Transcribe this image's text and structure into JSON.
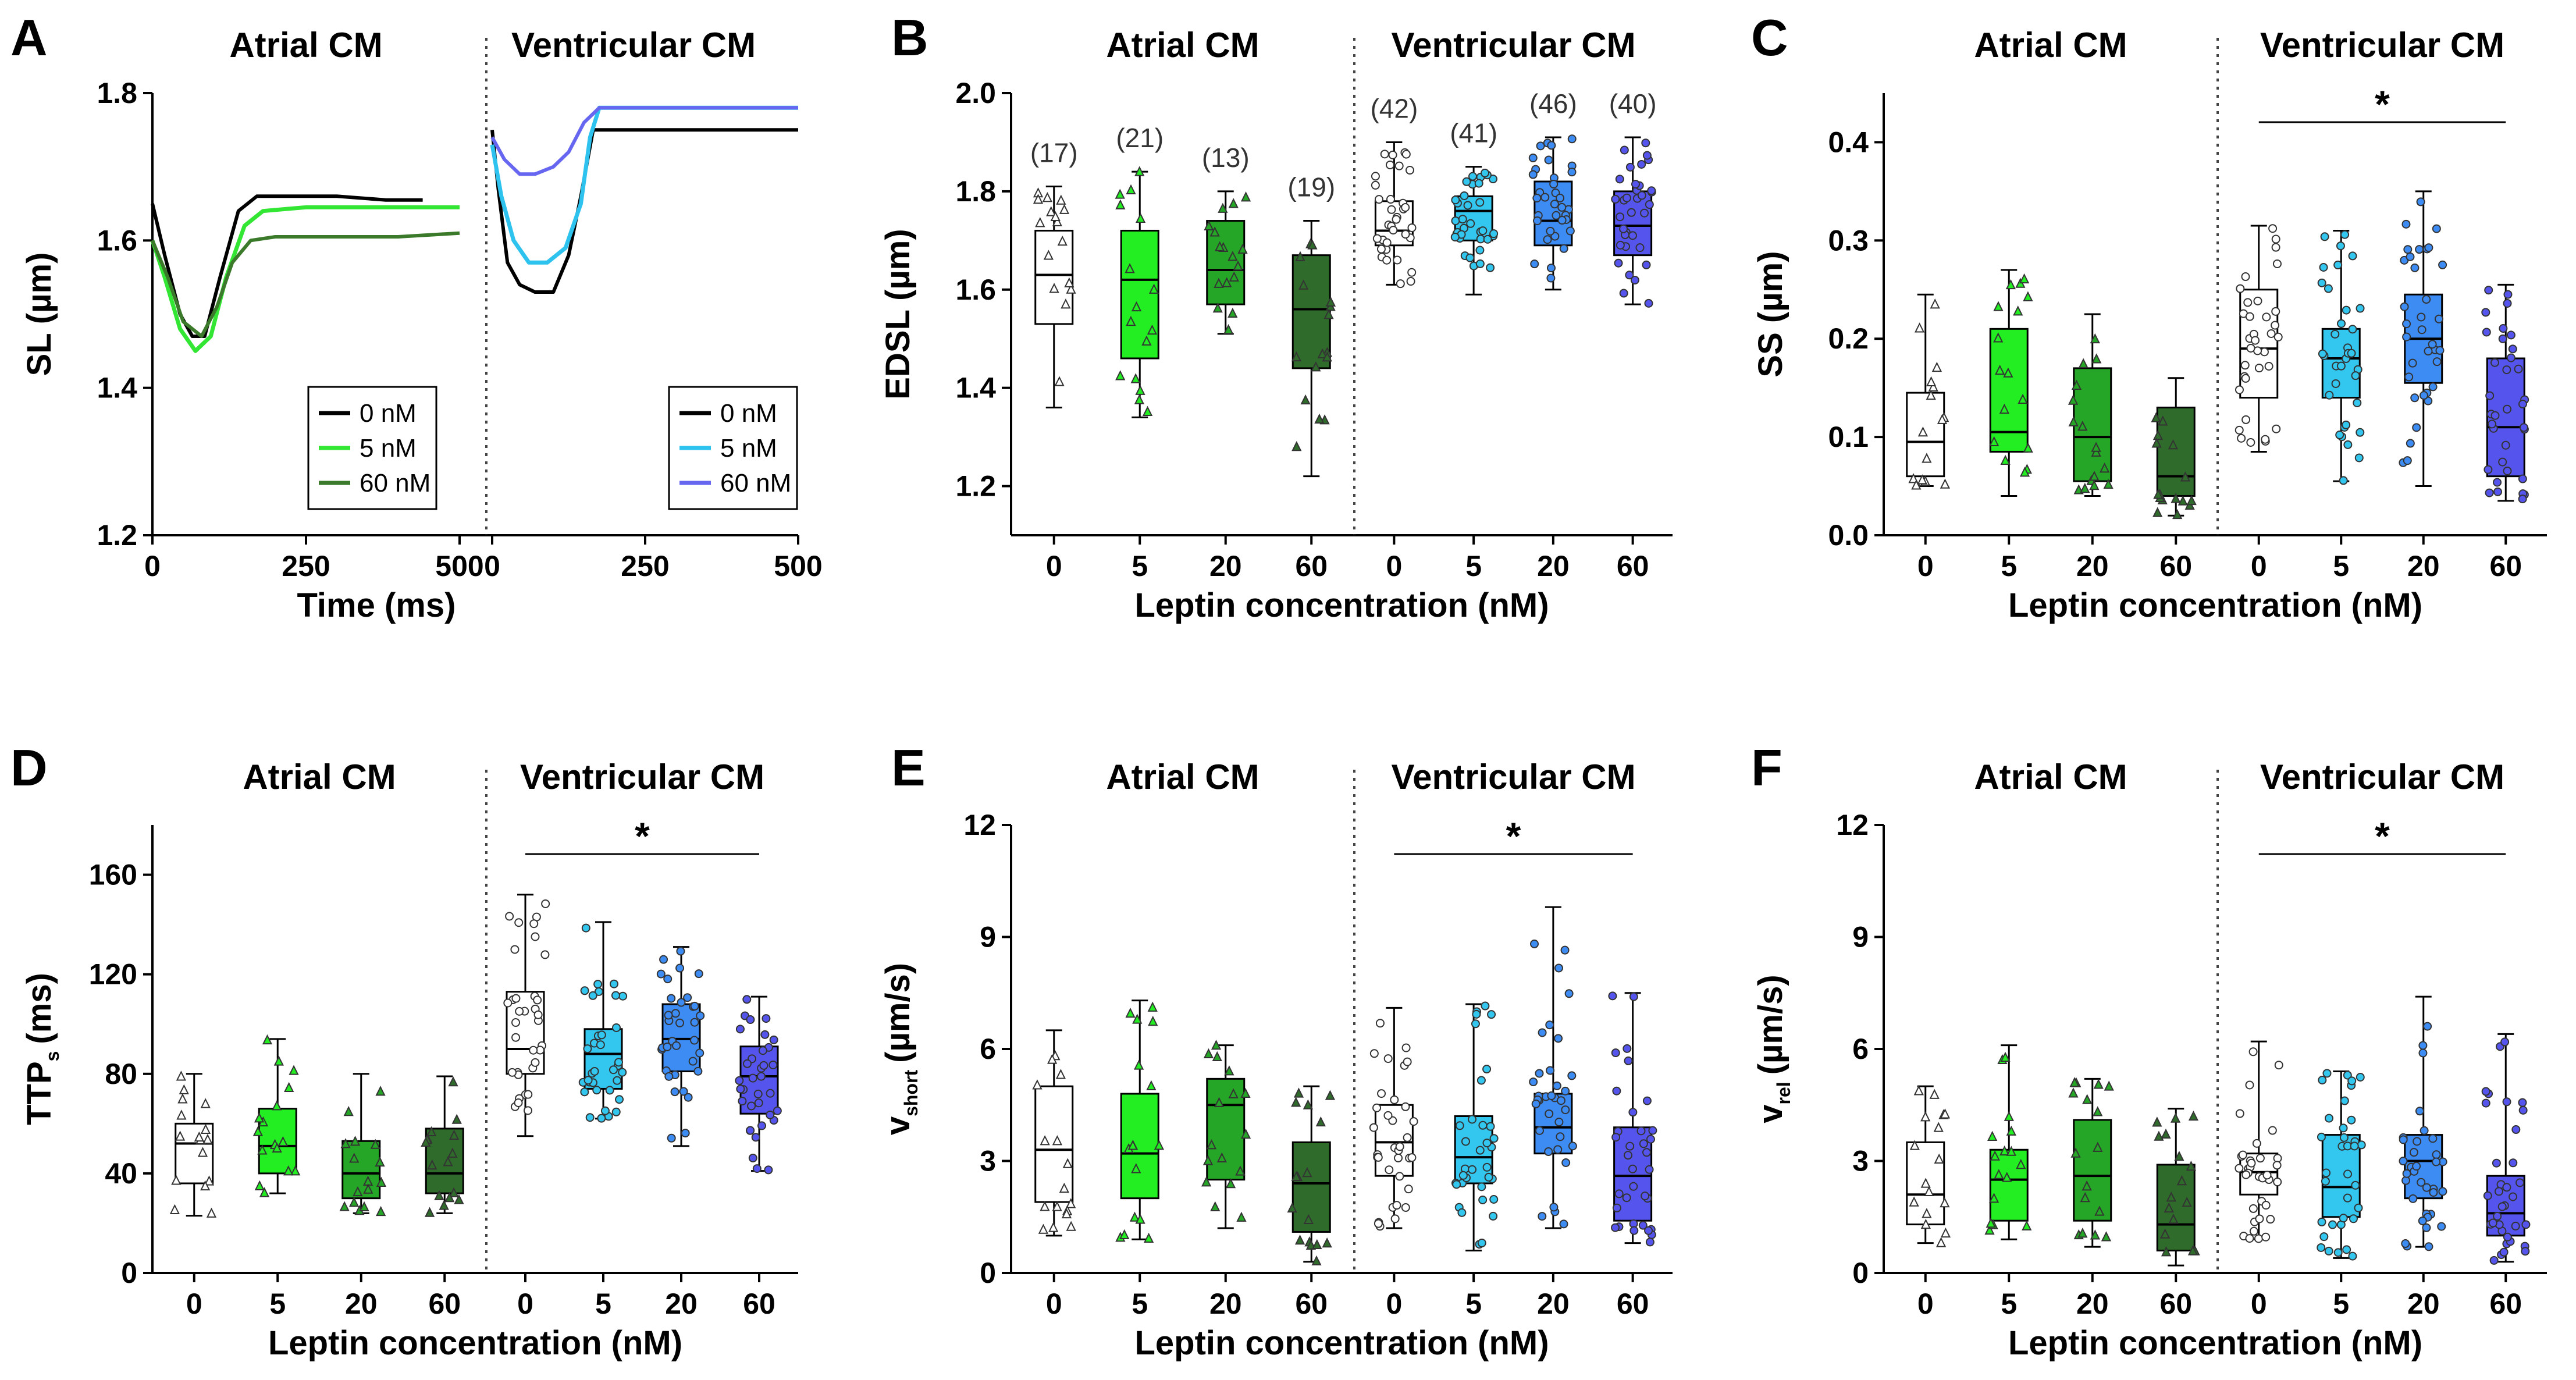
{
  "colors": {
    "atrial": [
      "#ffffff",
      "#22ee22",
      "#26a626",
      "#2f6b2b"
    ],
    "ventricular": [
      "#ffffff",
      "#33c6ee",
      "#3d8cf4",
      "#5555ee"
    ],
    "trace_atrial": [
      "#000000",
      "#33e633",
      "#3a7a2a"
    ],
    "trace_ventricular": [
      "#000000",
      "#2ec2ee",
      "#6666f0"
    ]
  },
  "chart_data": [
    {
      "panel": "A",
      "type": "line",
      "ylabel": "SL (µm)",
      "xlabel": "Time (ms)",
      "ylim": [
        1.2,
        1.8
      ],
      "yticks": [
        "1.2",
        "1.4",
        "1.6",
        "1.8"
      ],
      "groups": [
        {
          "title": "Atrial CM",
          "xlim": [
            0,
            500
          ],
          "xticks": [
            "0",
            "250",
            "500"
          ],
          "legend": [
            "0 nM",
            "5 nM",
            "60 nM"
          ],
          "series": [
            {
              "name": "0 nM",
              "x": [
                0,
                20,
                45,
                65,
                85,
                110,
                140,
                170,
                220,
                300,
                380,
                440
              ],
              "y": [
                1.65,
                1.58,
                1.5,
                1.47,
                1.47,
                1.55,
                1.64,
                1.66,
                1.66,
                1.66,
                1.655,
                1.655
              ]
            },
            {
              "name": "5 nM",
              "x": [
                0,
                20,
                45,
                70,
                95,
                120,
                150,
                180,
                250,
                350,
                500
              ],
              "y": [
                1.6,
                1.55,
                1.48,
                1.45,
                1.47,
                1.55,
                1.62,
                1.64,
                1.645,
                1.645,
                1.645
              ]
            },
            {
              "name": "60 nM",
              "x": [
                0,
                25,
                50,
                80,
                105,
                130,
                160,
                200,
                300,
                400,
                500
              ],
              "y": [
                1.6,
                1.55,
                1.49,
                1.47,
                1.51,
                1.57,
                1.6,
                1.605,
                1.605,
                1.605,
                1.61
              ]
            }
          ]
        },
        {
          "title": "Ventricular CM",
          "xlim": [
            0,
            500
          ],
          "xticks": [
            "0",
            "250",
            "500"
          ],
          "legend": [
            "0 nM",
            "5 nM",
            "60 nM"
          ],
          "series": [
            {
              "name": "0 nM",
              "x": [
                0,
                10,
                25,
                45,
                70,
                100,
                125,
                145,
                165,
                185,
                300,
                500
              ],
              "y": [
                1.75,
                1.67,
                1.57,
                1.54,
                1.53,
                1.53,
                1.58,
                1.66,
                1.75,
                1.75,
                1.75,
                1.75
              ]
            },
            {
              "name": "5 nM",
              "x": [
                0,
                15,
                35,
                60,
                90,
                120,
                145,
                160,
                175,
                300,
                500
              ],
              "y": [
                1.73,
                1.66,
                1.6,
                1.57,
                1.57,
                1.59,
                1.65,
                1.74,
                1.78,
                1.78,
                1.78
              ]
            },
            {
              "name": "60 nM",
              "x": [
                0,
                20,
                45,
                70,
                100,
                125,
                150,
                175,
                250,
                350,
                500
              ],
              "y": [
                1.74,
                1.71,
                1.69,
                1.69,
                1.7,
                1.72,
                1.76,
                1.78,
                1.78,
                1.78,
                1.78
              ]
            }
          ]
        }
      ]
    },
    {
      "panel": "B",
      "type": "box",
      "ylabel": "EDSL (µm)",
      "xlabel": "Leptin concentration (nM)",
      "ylim": [
        1.1,
        2.0
      ],
      "yticks": [
        "1.2",
        "1.4",
        "1.6",
        "1.8",
        "2.0"
      ],
      "categories": [
        "0",
        "5",
        "20",
        "60"
      ],
      "significant": [
        false,
        false
      ],
      "groups": [
        {
          "title": "Atrial CM",
          "n": [
            "(17)",
            "(21)",
            "(13)",
            "(19)"
          ],
          "boxes": [
            {
              "min": 1.36,
              "q1": 1.53,
              "median": 1.63,
              "q3": 1.72,
              "max": 1.81
            },
            {
              "min": 1.34,
              "q1": 1.46,
              "median": 1.62,
              "q3": 1.72,
              "max": 1.84
            },
            {
              "min": 1.51,
              "q1": 1.57,
              "median": 1.64,
              "q3": 1.74,
              "max": 1.8
            },
            {
              "min": 1.22,
              "q1": 1.44,
              "median": 1.56,
              "q3": 1.67,
              "max": 1.74
            }
          ]
        },
        {
          "title": "Ventricular CM",
          "n": [
            "(42)",
            "(41)",
            "(46)",
            "(40)"
          ],
          "boxes": [
            {
              "min": 1.61,
              "q1": 1.69,
              "median": 1.72,
              "q3": 1.78,
              "max": 1.9
            },
            {
              "min": 1.59,
              "q1": 1.7,
              "median": 1.76,
              "q3": 1.79,
              "max": 1.85
            },
            {
              "min": 1.6,
              "q1": 1.69,
              "median": 1.74,
              "q3": 1.82,
              "max": 1.91
            },
            {
              "min": 1.57,
              "q1": 1.67,
              "median": 1.73,
              "q3": 1.8,
              "max": 1.91
            }
          ]
        }
      ]
    },
    {
      "panel": "C",
      "type": "box",
      "ylabel": "SS (µm)",
      "xlabel": "Leptin concentration (nM)",
      "ylim": [
        0,
        0.45
      ],
      "yticks": [
        "0.0",
        "0.1",
        "0.2",
        "0.3",
        "0.4"
      ],
      "categories": [
        "0",
        "5",
        "20",
        "60"
      ],
      "significant": [
        false,
        true
      ],
      "significance_label": "*",
      "groups": [
        {
          "title": "Atrial CM",
          "n": [],
          "boxes": [
            {
              "min": 0.05,
              "q1": 0.06,
              "median": 0.095,
              "q3": 0.145,
              "max": 0.245
            },
            {
              "min": 0.04,
              "q1": 0.085,
              "median": 0.105,
              "q3": 0.21,
              "max": 0.27
            },
            {
              "min": 0.04,
              "q1": 0.055,
              "median": 0.1,
              "q3": 0.17,
              "max": 0.225
            },
            {
              "min": 0.02,
              "q1": 0.04,
              "median": 0.06,
              "q3": 0.13,
              "max": 0.16
            }
          ]
        },
        {
          "title": "Ventricular CM",
          "n": [],
          "boxes": [
            {
              "min": 0.085,
              "q1": 0.14,
              "median": 0.19,
              "q3": 0.25,
              "max": 0.315
            },
            {
              "min": 0.055,
              "q1": 0.14,
              "median": 0.18,
              "q3": 0.21,
              "max": 0.31
            },
            {
              "min": 0.05,
              "q1": 0.155,
              "median": 0.2,
              "q3": 0.245,
              "max": 0.35
            },
            {
              "min": 0.035,
              "q1": 0.06,
              "median": 0.11,
              "q3": 0.18,
              "max": 0.255
            }
          ]
        }
      ]
    },
    {
      "panel": "D",
      "type": "box",
      "ylabel": "TTP",
      "ylabel_sub": "s",
      "ylabel_unit": "(ms)",
      "xlabel": "Leptin concentration (nM)",
      "ylim": [
        0,
        180
      ],
      "yticks": [
        "0",
        "40",
        "80",
        "120",
        "160"
      ],
      "categories": [
        "0",
        "5",
        "20",
        "60"
      ],
      "significant": [
        false,
        true
      ],
      "significance_label": "*",
      "groups": [
        {
          "title": "Atrial CM",
          "n": [],
          "boxes": [
            {
              "min": 23,
              "q1": 36,
              "median": 52,
              "q3": 60,
              "max": 80
            },
            {
              "min": 32,
              "q1": 40,
              "median": 51,
              "q3": 66,
              "max": 94
            },
            {
              "min": 24,
              "q1": 30,
              "median": 40,
              "q3": 53,
              "max": 80
            },
            {
              "min": 24,
              "q1": 32,
              "median": 40,
              "q3": 58,
              "max": 79
            }
          ]
        },
        {
          "title": "Ventricular CM",
          "n": [],
          "boxes": [
            {
              "min": 55,
              "q1": 80,
              "median": 90,
              "q3": 113,
              "max": 152
            },
            {
              "min": 62,
              "q1": 74,
              "median": 88,
              "q3": 98,
              "max": 141
            },
            {
              "min": 51,
              "q1": 81,
              "median": 94,
              "q3": 108,
              "max": 131
            },
            {
              "min": 41,
              "q1": 64,
              "median": 79,
              "q3": 91,
              "max": 111
            }
          ]
        }
      ]
    },
    {
      "panel": "E",
      "type": "box",
      "ylabel": "v",
      "ylabel_sub": "short",
      "ylabel_unit": "(µm/s)",
      "xlabel": "Leptin concentration (nM)",
      "ylim": [
        0,
        12
      ],
      "yticks": [
        "0",
        "3",
        "6",
        "9",
        "12"
      ],
      "categories": [
        "0",
        "5",
        "20",
        "60"
      ],
      "significant": [
        false,
        true
      ],
      "significance_label": "*",
      "groups": [
        {
          "title": "Atrial CM",
          "n": [],
          "boxes": [
            {
              "min": 1.0,
              "q1": 1.9,
              "median": 3.3,
              "q3": 5.0,
              "max": 6.5
            },
            {
              "min": 0.9,
              "q1": 2.0,
              "median": 3.2,
              "q3": 4.8,
              "max": 7.3
            },
            {
              "min": 1.2,
              "q1": 2.5,
              "median": 4.5,
              "q3": 5.2,
              "max": 6.1
            },
            {
              "min": 0.3,
              "q1": 1.1,
              "median": 2.4,
              "q3": 3.5,
              "max": 5.0
            }
          ]
        },
        {
          "title": "Ventricular CM",
          "n": [],
          "boxes": [
            {
              "min": 1.2,
              "q1": 2.6,
              "median": 3.5,
              "q3": 4.5,
              "max": 7.1
            },
            {
              "min": 0.6,
              "q1": 2.4,
              "median": 3.1,
              "q3": 4.2,
              "max": 7.2
            },
            {
              "min": 1.2,
              "q1": 3.2,
              "median": 3.9,
              "q3": 4.8,
              "max": 9.8
            },
            {
              "min": 0.8,
              "q1": 1.4,
              "median": 2.6,
              "q3": 3.9,
              "max": 7.5
            }
          ]
        }
      ]
    },
    {
      "panel": "F",
      "type": "box",
      "ylabel": "v",
      "ylabel_sub": "rel",
      "ylabel_unit": "(µm/s)",
      "xlabel": "Leptin concentration (nM)",
      "ylim": [
        0,
        12
      ],
      "yticks": [
        "0",
        "3",
        "6",
        "9",
        "12"
      ],
      "categories": [
        "0",
        "5",
        "20",
        "60"
      ],
      "significant": [
        false,
        true
      ],
      "significance_label": "*",
      "groups": [
        {
          "title": "Atrial CM",
          "n": [],
          "boxes": [
            {
              "min": 0.8,
              "q1": 1.3,
              "median": 2.1,
              "q3": 3.5,
              "max": 5.0
            },
            {
              "min": 0.9,
              "q1": 1.4,
              "median": 2.5,
              "q3": 3.3,
              "max": 6.1
            },
            {
              "min": 0.7,
              "q1": 1.4,
              "median": 2.6,
              "q3": 4.1,
              "max": 5.2
            },
            {
              "min": 0.2,
              "q1": 0.6,
              "median": 1.3,
              "q3": 2.9,
              "max": 4.4
            }
          ]
        },
        {
          "title": "Ventricular CM",
          "n": [],
          "boxes": [
            {
              "min": 0.9,
              "q1": 2.1,
              "median": 2.7,
              "q3": 3.2,
              "max": 6.2
            },
            {
              "min": 0.4,
              "q1": 1.5,
              "median": 2.3,
              "q3": 3.7,
              "max": 5.4
            },
            {
              "min": 0.7,
              "q1": 2.0,
              "median": 3.0,
              "q3": 3.7,
              "max": 7.4
            },
            {
              "min": 0.3,
              "q1": 1.0,
              "median": 1.6,
              "q3": 2.6,
              "max": 6.4
            }
          ]
        }
      ]
    }
  ]
}
